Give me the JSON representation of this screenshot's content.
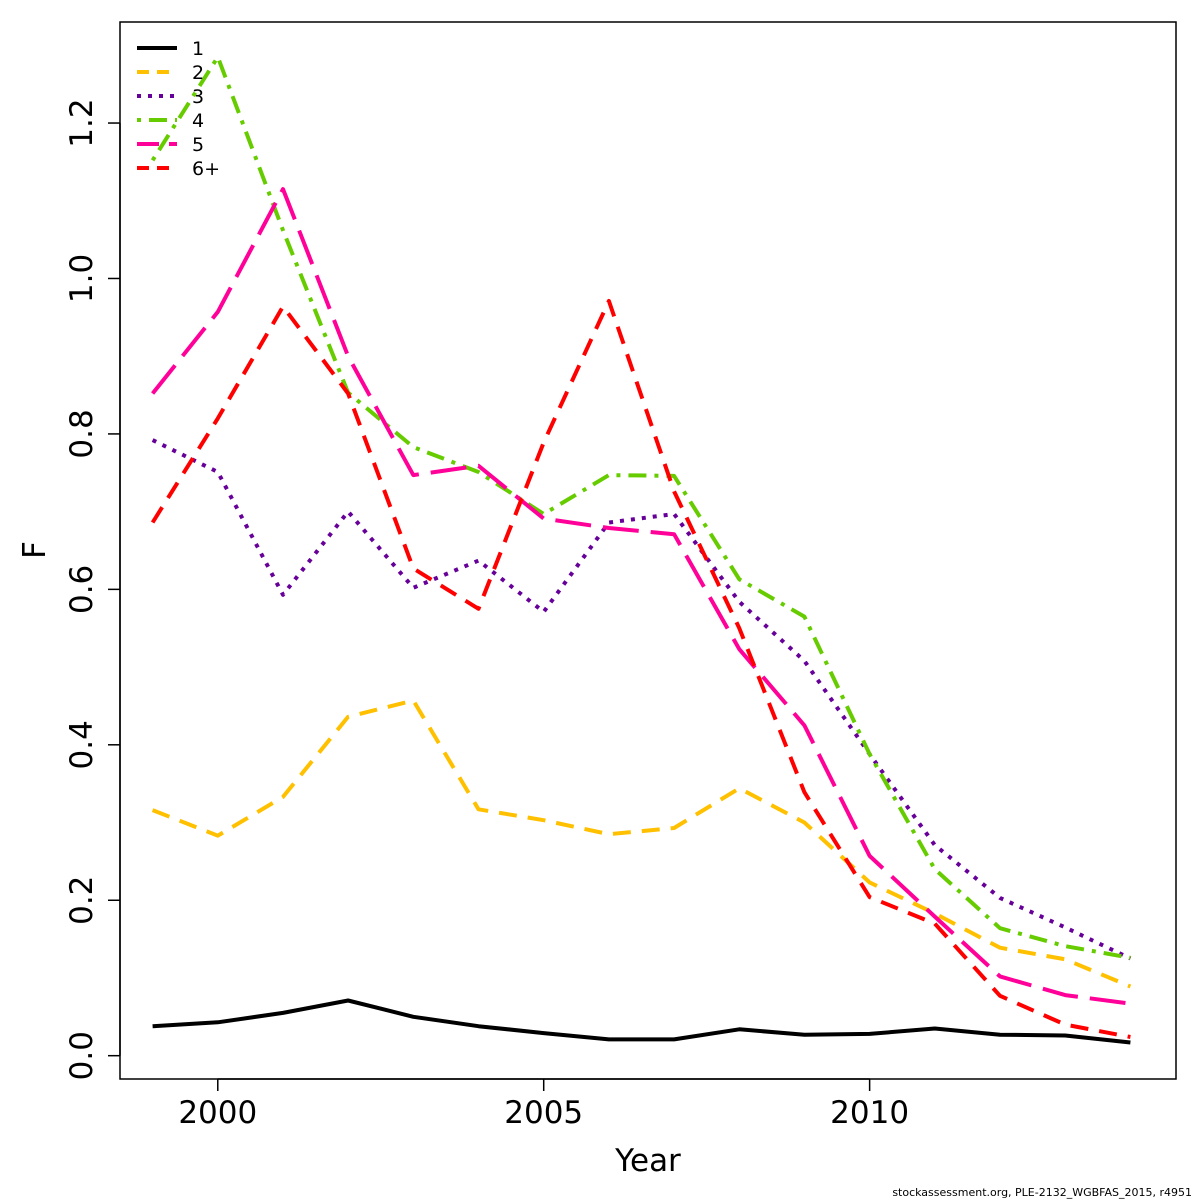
{
  "chart_data": {
    "type": "line",
    "title": "",
    "xlabel": "Year",
    "ylabel": "F",
    "xlim": [
      1998.5,
      2014.7
    ],
    "ylim": [
      -0.03,
      1.33
    ],
    "x_ticks": [
      2000,
      2005,
      2010
    ],
    "x_tick_labels": [
      "2000",
      "2005",
      "2010"
    ],
    "y_ticks": [
      0.0,
      0.2,
      0.4,
      0.6,
      0.8,
      1.0,
      1.2
    ],
    "y_tick_labels": [
      "0.0",
      "0.2",
      "0.4",
      "0.6",
      "0.8",
      "1.0",
      "1.2"
    ],
    "grid": false,
    "legend_position": "top-left",
    "x": [
      1999,
      2000,
      2001,
      2002,
      2003,
      2004,
      2005,
      2006,
      2007,
      2008,
      2009,
      2010,
      2011,
      2012,
      2013,
      2014
    ],
    "series": [
      {
        "name": "1",
        "color": "#000000",
        "dash": "solid",
        "values": [
          0.038,
          0.043,
          0.055,
          0.071,
          0.05,
          0.038,
          0.029,
          0.021,
          0.021,
          0.034,
          0.027,
          0.028,
          0.035,
          0.027,
          0.026,
          0.017
        ]
      },
      {
        "name": "2",
        "color": "#FFC000",
        "dash": "dashed",
        "values": [
          0.316,
          0.283,
          0.333,
          0.436,
          0.457,
          0.317,
          0.303,
          0.285,
          0.293,
          0.344,
          0.3,
          0.223,
          0.183,
          0.139,
          0.124,
          0.089
        ]
      },
      {
        "name": "3",
        "color": "#660099",
        "dash": "dotted",
        "values": [
          0.792,
          0.751,
          0.593,
          0.7,
          0.602,
          0.637,
          0.571,
          0.686,
          0.697,
          0.584,
          0.508,
          0.388,
          0.271,
          0.203,
          0.165,
          0.125
        ]
      },
      {
        "name": "4",
        "color": "#66CC00",
        "dash": "dotdash",
        "values": [
          1.152,
          1.285,
          1.062,
          0.853,
          0.783,
          0.751,
          0.697,
          0.747,
          0.746,
          0.613,
          0.565,
          0.388,
          0.24,
          0.164,
          0.141,
          0.126
        ]
      },
      {
        "name": "5",
        "color": "#FF0099",
        "dash": "longdash",
        "values": [
          0.852,
          0.957,
          1.115,
          0.9,
          0.747,
          0.759,
          0.691,
          0.679,
          0.671,
          0.523,
          0.425,
          0.257,
          0.179,
          0.102,
          0.078,
          0.067
        ]
      },
      {
        "name": "6+",
        "color": "#FF0000",
        "dash": "dashed",
        "values": [
          0.686,
          0.82,
          0.964,
          0.852,
          0.627,
          0.575,
          0.789,
          0.971,
          0.726,
          0.55,
          0.339,
          0.204,
          0.17,
          0.077,
          0.04,
          0.024
        ]
      }
    ],
    "footer": "stockassessment.org, PLE-2132_WGBFAS_2015, r4951"
  }
}
